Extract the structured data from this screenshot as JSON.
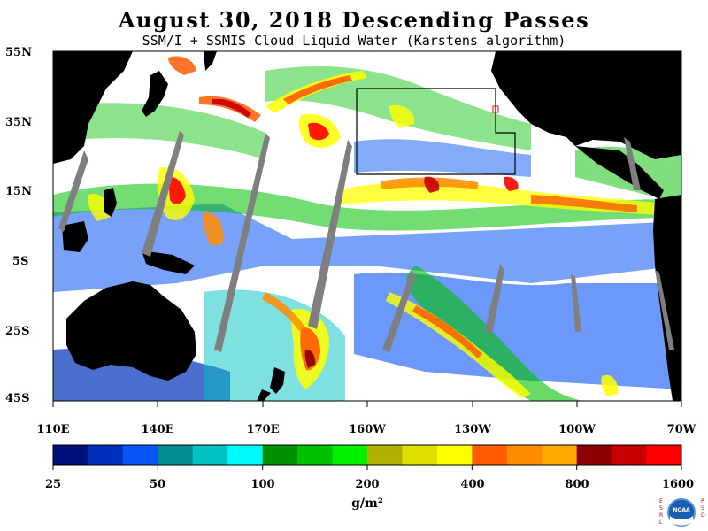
{
  "header": {
    "title": "August 30, 2018  Descending Passes",
    "subtitle": "SSM/I + SSMIS Cloud Liquid Water (Karstens algorithm)"
  },
  "axes": {
    "latitude_labels": [
      "55N",
      "35N",
      "15N",
      "5S",
      "25S",
      "45S"
    ],
    "longitude_labels": [
      "110E",
      "140E",
      "170E",
      "160W",
      "130W",
      "100W",
      "70W"
    ]
  },
  "colorbar": {
    "tick_labels": [
      "25",
      "50",
      "100",
      "200",
      "400",
      "800",
      "1600"
    ],
    "unit": "g/m²",
    "colors": [
      "#000e7a",
      "#0030bb",
      "#0a55f5",
      "#008e90",
      "#00c1c1",
      "#00fafa",
      "#009000",
      "#00c000",
      "#00f000",
      "#b0b000",
      "#dede00",
      "#ffff00",
      "#ff5c00",
      "#ff8c00",
      "#ffa800",
      "#8e0000",
      "#c80000",
      "#ff0000"
    ]
  },
  "map": {
    "ocean_no_data_color": "#ffffff",
    "land_color": "#000000",
    "swath_gap_color": "#7f7f7f",
    "box_color": "#000000"
  },
  "logo": {
    "left_letters": "ESRL",
    "right_letters": "PSD",
    "center": "NOAA"
  }
}
